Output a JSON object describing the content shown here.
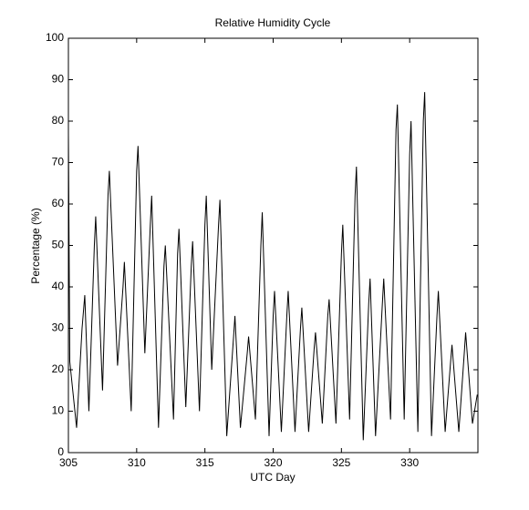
{
  "chart_data": {
    "type": "line",
    "title": "Relative Humidity Cycle",
    "xlabel": "UTC Day",
    "ylabel": "Percentage (%)",
    "x": [
      305.0,
      305.1,
      305.6,
      306.0,
      306.2,
      306.5,
      306.9,
      307.0,
      307.5,
      307.9,
      308.0,
      308.6,
      309.0,
      309.1,
      309.6,
      310.0,
      310.1,
      310.6,
      311.0,
      311.1,
      311.6,
      312.0,
      312.1,
      312.7,
      313.0,
      313.1,
      313.6,
      314.0,
      314.1,
      314.6,
      315.0,
      315.1,
      315.5,
      316.0,
      316.1,
      316.6,
      317.1,
      317.2,
      317.6,
      318.1,
      318.2,
      318.7,
      319.1,
      319.2,
      319.7,
      320.0,
      320.1,
      320.6,
      321.0,
      321.1,
      321.6,
      322.0,
      322.1,
      322.6,
      323.0,
      323.1,
      323.6,
      324.0,
      324.1,
      324.6,
      325.0,
      325.1,
      325.6,
      326.0,
      326.1,
      326.6,
      327.0,
      327.1,
      327.5,
      328.0,
      328.1,
      328.6,
      329.0,
      329.1,
      329.6,
      330.0,
      330.1,
      330.6,
      331.0,
      331.1,
      331.6,
      332.0,
      332.1,
      332.6,
      333.0,
      333.1,
      333.6,
      334.0,
      334.1,
      334.6,
      334.95
    ],
    "series": [
      {
        "color": "#000000",
        "values": [
          77,
          22,
          6,
          30,
          38,
          10,
          50,
          57,
          15,
          62,
          68,
          21,
          40,
          46,
          10,
          68,
          74,
          24,
          55,
          62,
          6,
          45,
          50,
          8,
          48,
          54,
          11,
          45,
          51,
          10,
          55,
          62,
          20,
          55,
          61,
          4,
          28,
          33,
          6,
          24,
          28,
          8,
          50,
          58,
          4,
          33,
          39,
          5,
          33,
          39,
          5,
          30,
          35,
          5,
          25,
          29,
          7,
          33,
          37,
          7,
          48,
          55,
          8,
          62,
          69,
          3,
          36,
          42,
          4,
          36,
          42,
          8,
          78,
          84,
          8,
          72,
          80,
          5,
          80,
          87,
          4,
          33,
          39,
          5,
          22,
          26,
          5,
          24,
          29,
          7,
          14
        ]
      }
    ],
    "xlim": [
      305,
      335
    ],
    "ylim": [
      0,
      100
    ],
    "xticks": [
      305,
      310,
      315,
      320,
      325,
      330
    ],
    "yticks": [
      0,
      10,
      20,
      30,
      40,
      50,
      60,
      70,
      80,
      90,
      100
    ]
  }
}
